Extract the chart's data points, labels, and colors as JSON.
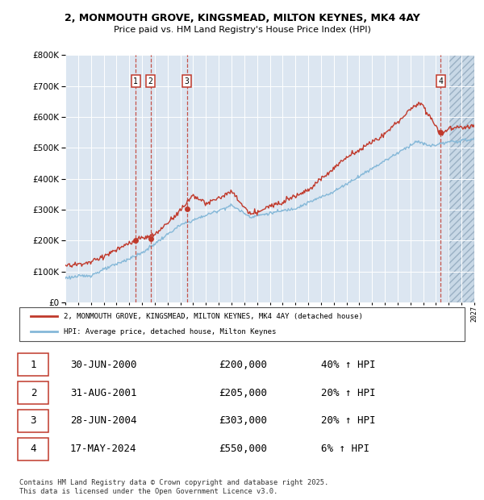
{
  "title_line1": "2, MONMOUTH GROVE, KINGSMEAD, MILTON KEYNES, MK4 4AY",
  "title_line2": "Price paid vs. HM Land Registry's House Price Index (HPI)",
  "bg_color": "#ffffff",
  "plot_bg_color": "#dce6f1",
  "grid_color": "#ffffff",
  "red_line_color": "#c0392b",
  "blue_line_color": "#85b8d8",
  "transactions": [
    {
      "num": 1,
      "date": "30-JUN-2000",
      "price": 200000,
      "year": 2000.5,
      "hpi_pct": "40%"
    },
    {
      "num": 2,
      "date": "31-AUG-2001",
      "price": 205000,
      "year": 2001.67,
      "hpi_pct": "20%"
    },
    {
      "num": 3,
      "date": "28-JUN-2004",
      "price": 303000,
      "year": 2004.5,
      "hpi_pct": "20%"
    },
    {
      "num": 4,
      "date": "17-MAY-2024",
      "price": 550000,
      "year": 2024.38,
      "hpi_pct": "6%"
    }
  ],
  "legend_label_red": "2, MONMOUTH GROVE, KINGSMEAD, MILTON KEYNES, MK4 4AY (detached house)",
  "legend_label_blue": "HPI: Average price, detached house, Milton Keynes",
  "footer": "Contains HM Land Registry data © Crown copyright and database right 2025.\nThis data is licensed under the Open Government Licence v3.0.",
  "xmin": 1995,
  "xmax": 2027,
  "ymin": 0,
  "ymax": 800000,
  "hatch_start": 2025
}
